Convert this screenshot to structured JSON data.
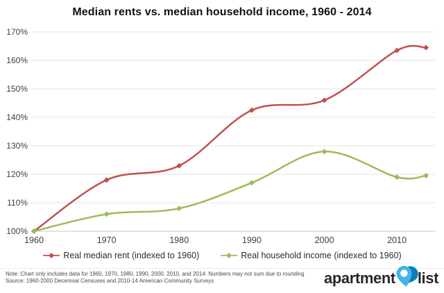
{
  "title": "Median rents vs. median household income, 1960 - 2014",
  "chart_data": {
    "type": "line",
    "title": "Median rents vs. median household income, 1960 - 2014",
    "x": [
      1960,
      1970,
      1980,
      1990,
      2000,
      2010,
      2014
    ],
    "x_ticks": [
      1960,
      1970,
      1980,
      1990,
      2000,
      2010
    ],
    "y_ticks": [
      100,
      110,
      120,
      130,
      140,
      150,
      160,
      170
    ],
    "y_tick_suffix": "%",
    "ylim": [
      100,
      170
    ],
    "xlabel": "",
    "ylabel": "",
    "grid": true,
    "smooth": true,
    "legend_position": "bottom",
    "series": [
      {
        "name": "Real median rent (indexed to 1960)",
        "color": "#C0504D",
        "values": [
          100,
          118,
          123,
          142.5,
          146,
          163.5,
          164.5
        ]
      },
      {
        "name": "Real household income (indexed to 1960)",
        "color": "#9BBB59",
        "values": [
          100,
          106,
          108,
          117,
          128,
          119,
          119.5
        ]
      }
    ]
  },
  "colors": {
    "gridline": "#e4e4e4",
    "axis_line": "#c9c9c9",
    "tick_text": "#3e3e3e",
    "rent_red": "#C0504D",
    "income_green": "#9BBB59",
    "logo_text": "#282828",
    "pin_light_blue": "#41B6E6",
    "pin_dark_blue": "#0C7FB8"
  },
  "footer": {
    "note": "Note: Chart only includes data for 1960, 1970, 1980, 1990, 2000, 2010, and 2014. Numbers may not sum due to rounding",
    "source": "Source: 1960-2000 Decennial Censuses and 2010-14 American Community Surveys"
  },
  "logo": {
    "word1": "apartment",
    "word2": "list"
  }
}
